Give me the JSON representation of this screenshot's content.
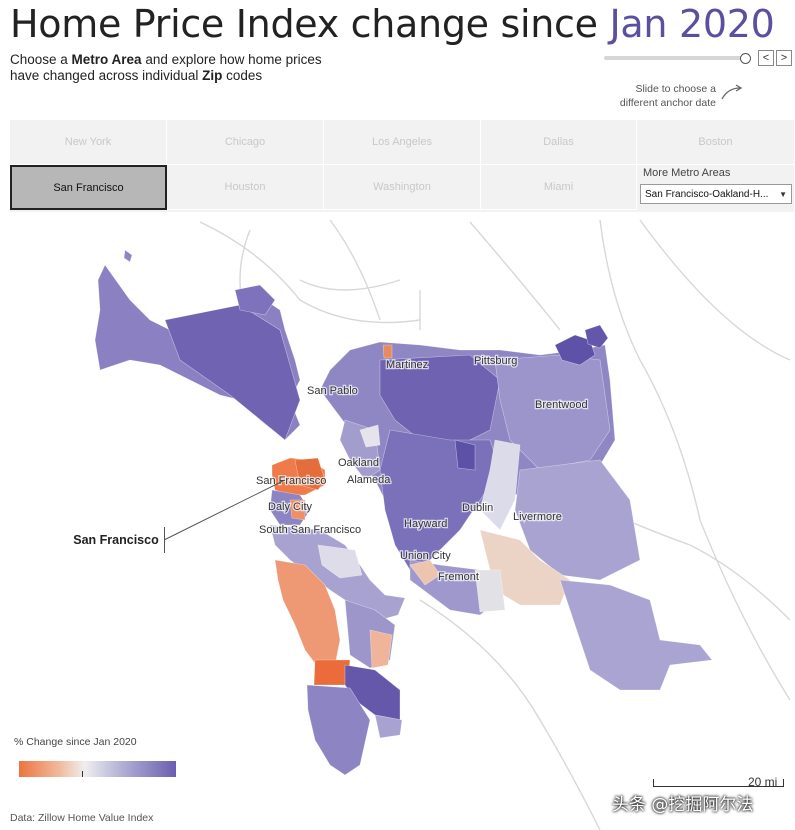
{
  "header": {
    "title_main": "Home Price Index change since ",
    "title_accent": "Jan 2020",
    "subtitle_l1_a": "Choose a ",
    "subtitle_l1_b": "Metro Area",
    "subtitle_l1_c": " and explore how home prices",
    "subtitle_l2_a": "have changed across individual ",
    "subtitle_l2_b": "Zip",
    "subtitle_l2_c": " codes"
  },
  "slider": {
    "prev_label": "<",
    "next_label": ">",
    "hint_l1": "Slide to choose a",
    "hint_l2": "different anchor date",
    "value_fraction": 1.0
  },
  "metros": {
    "row1": [
      "New York",
      "Chicago",
      "Los Angeles",
      "Dallas",
      "Boston"
    ],
    "row2": [
      "San Francisco",
      "Houston",
      "Washington",
      "Miami"
    ],
    "active": "San Francisco",
    "more_label": "More Metro Areas",
    "more_selected": "San Francisco-Oakland-H..."
  },
  "map": {
    "cities": [
      "Martinez",
      "Pittsburg",
      "San Pablo",
      "Brentwood",
      "Oakland",
      "Alameda",
      "San Francisco",
      "Daly City",
      "South San Francisco",
      "Hayward",
      "Dublin",
      "Livermore",
      "Union City",
      "Fremont"
    ],
    "callout": "San Francisco"
  },
  "legend": {
    "title": "% Change since Jan 2020",
    "low_color": "#ee7441",
    "mid_color": "#eeeeee",
    "high_color": "#6b5eb0"
  },
  "footer": {
    "source": "Data: Zillow Home Value Index",
    "scale": "20 mi",
    "watermark": "头条 @挖掘阿尔法"
  }
}
